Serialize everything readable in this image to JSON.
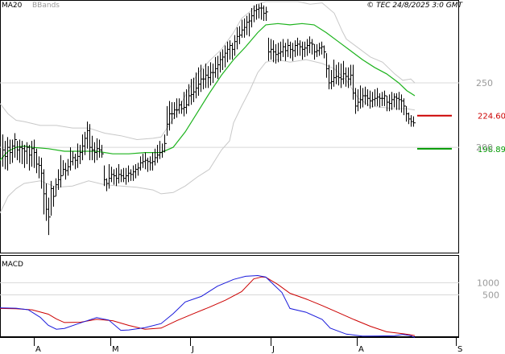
{
  "header": {
    "ma_label": "MA20",
    "bbands_label": "BBands",
    "source": "© TEC 24/8/2025 3:0 GMT"
  },
  "colors": {
    "ma": "#1db31d",
    "bbands": "#c8c8c8",
    "bars": "#000000",
    "resistance": "#cc0000",
    "support": "#009900",
    "macd": "#1a1adb",
    "signal": "#cc0000",
    "grid": "#d8d8d8",
    "axis_text": "#9a9a9a"
  },
  "chart_data": [
    {
      "type": "line",
      "panel": "price",
      "xlim": [
        0,
        570
      ],
      "ylim": [
        119,
        313
      ],
      "y_ticks": [
        {
          "value": 250,
          "label": "250"
        },
        {
          "value": 200,
          "label": "200"
        }
      ],
      "levels": [
        {
          "name": "resistance",
          "value": 224.6,
          "label": "224.60"
        },
        {
          "name": "support",
          "value": 198.89,
          "label": "198.89"
        }
      ],
      "series": [
        {
          "name": "MA20",
          "x": [
            0,
            10,
            20,
            30,
            40,
            60,
            80,
            100,
            120,
            140,
            160,
            180,
            200,
            215,
            230,
            245,
            260,
            275,
            290,
            305,
            320,
            330,
            345,
            360,
            375,
            390,
            405,
            420,
            435,
            450,
            465,
            480,
            495,
            505,
            515
          ],
          "y": [
            190,
            197,
            200,
            201,
            200,
            199,
            197,
            197,
            197,
            195,
            195,
            196,
            196,
            200,
            212,
            227,
            242,
            256,
            268,
            278,
            289,
            295,
            296,
            295,
            296,
            295,
            289,
            282,
            275,
            268,
            262,
            257,
            250,
            244,
            240
          ]
        },
        {
          "name": "BBands upper",
          "x": [
            0,
            10,
            20,
            30,
            50,
            70,
            90,
            110,
            130,
            150,
            170,
            190,
            200,
            215,
            230,
            245,
            260,
            275,
            290,
            300,
            310,
            320,
            330,
            340,
            355,
            370,
            385,
            400,
            415,
            425,
            430,
            445,
            460,
            475,
            490,
            500,
            510,
            515
          ],
          "y": [
            234,
            226,
            221,
            220,
            217,
            217,
            215,
            215,
            211,
            209,
            206,
            207,
            208,
            222,
            240,
            257,
            267,
            276,
            289,
            300,
            305,
            311,
            313,
            313,
            313,
            313,
            311,
            312,
            304,
            290,
            284,
            277,
            270,
            266,
            257,
            252,
            253,
            250
          ]
        },
        {
          "name": "BBands lower",
          "x": [
            0,
            10,
            20,
            30,
            50,
            70,
            90,
            110,
            130,
            150,
            170,
            190,
            200,
            215,
            230,
            245,
            260,
            275,
            285,
            290,
            300,
            310,
            320,
            330,
            345,
            360,
            380,
            400,
            415,
            430,
            445,
            460,
            475,
            490,
            505,
            515
          ],
          "y": [
            149,
            162,
            168,
            172,
            174,
            169,
            170,
            174,
            171,
            170,
            169,
            167,
            164,
            165,
            170,
            177,
            183,
            198,
            205,
            219,
            232,
            244,
            258,
            266,
            268,
            266,
            268,
            265,
            261,
            252,
            238,
            232,
            231,
            230,
            230,
            229
          ]
        }
      ]
    },
    {
      "type": "line",
      "panel": "macd",
      "xlim": [
        0,
        570
      ],
      "ylim": [
        -1200,
        2100
      ],
      "y_ticks": [
        {
          "value": 1000,
          "label": "1000"
        },
        {
          "value": 500,
          "label": "500"
        }
      ],
      "series": [
        {
          "name": "MACD",
          "x": [
            0,
            20,
            35,
            50,
            60,
            70,
            80,
            100,
            120,
            135,
            150,
            160,
            180,
            200,
            215,
            230,
            250,
            270,
            290,
            305,
            320,
            330,
            340,
            350,
            360,
            380,
            400,
            410,
            430,
            450,
            470,
            490,
            500,
            510,
            515
          ],
          "y": [
            -32,
            -49,
            -111,
            -420,
            -747,
            -908,
            -876,
            -648,
            -435,
            -532,
            -956,
            -940,
            -843,
            -680,
            -272,
            210,
            436,
            856,
            1132,
            1262,
            1292,
            1228,
            912,
            600,
            -58,
            -214,
            -506,
            -864,
            -1111,
            -1190,
            -1187,
            -1174,
            -1124,
            -1174,
            -1253
          ]
        },
        {
          "name": "Signal",
          "x": [
            0,
            20,
            40,
            60,
            70,
            80,
            100,
            120,
            140,
            160,
            180,
            200,
            220,
            240,
            260,
            280,
            300,
            315,
            325,
            330,
            345,
            360,
            380,
            400,
            420,
            440,
            460,
            480,
            500,
            510,
            515
          ],
          "y": [
            -58,
            -68,
            -114,
            -292,
            -487,
            -637,
            -624,
            -505,
            -559,
            -756,
            -908,
            -864,
            -551,
            -272,
            -7,
            282,
            631,
            1152,
            1234,
            1221,
            924,
            566,
            332,
            59,
            -231,
            -521,
            -791,
            -1014,
            -1092,
            -1140,
            -1169
          ]
        }
      ]
    }
  ],
  "x_axis": {
    "labels": [
      {
        "x": 42,
        "label": "A"
      },
      {
        "x": 137,
        "label": "M"
      },
      {
        "x": 236,
        "label": "J"
      },
      {
        "x": 336,
        "label": "J"
      },
      {
        "x": 443,
        "label": "A"
      },
      {
        "x": 566,
        "label": "S"
      }
    ]
  },
  "ohlc_bars": [
    [
      3,
      210,
      185,
      198
    ],
    [
      6,
      205,
      183,
      193
    ],
    [
      9,
      208,
      182,
      200
    ],
    [
      12,
      206,
      187,
      196
    ],
    [
      15,
      206,
      188,
      201
    ],
    [
      18,
      211,
      192,
      206
    ],
    [
      21,
      205,
      190,
      198
    ],
    [
      24,
      206,
      188,
      200
    ],
    [
      27,
      205,
      187,
      199
    ],
    [
      30,
      202,
      184,
      197
    ],
    [
      33,
      204,
      187,
      200
    ],
    [
      36,
      202,
      182,
      194
    ],
    [
      39,
      205,
      185,
      199
    ],
    [
      42,
      206,
      184,
      196
    ],
    [
      45,
      199,
      180,
      187
    ],
    [
      48,
      193,
      176,
      186
    ],
    [
      51,
      192,
      168,
      180
    ],
    [
      54,
      183,
      148,
      164
    ],
    [
      57,
      172,
      143,
      152
    ],
    [
      60,
      161,
      132,
      146
    ],
    [
      63,
      174,
      147,
      168
    ],
    [
      66,
      170,
      154,
      162
    ],
    [
      69,
      176,
      162,
      171
    ],
    [
      72,
      183,
      167,
      175
    ],
    [
      75,
      194,
      169,
      178
    ],
    [
      78,
      190,
      178,
      183
    ],
    [
      81,
      188,
      175,
      182
    ],
    [
      84,
      191,
      178,
      185
    ],
    [
      87,
      200,
      182,
      189
    ],
    [
      90,
      197,
      186,
      192
    ],
    [
      93,
      195,
      183,
      190
    ],
    [
      96,
      203,
      184,
      193
    ],
    [
      99,
      202,
      187,
      196
    ],
    [
      102,
      210,
      190,
      201
    ],
    [
      105,
      212,
      194,
      207
    ],
    [
      108,
      220,
      199,
      213
    ],
    [
      111,
      218,
      190,
      200
    ],
    [
      114,
      209,
      190,
      198
    ],
    [
      117,
      204,
      188,
      196
    ],
    [
      120,
      207,
      190,
      199
    ],
    [
      123,
      206,
      192,
      198
    ],
    [
      126,
      202,
      192,
      195
    ],
    [
      129,
      186,
      170,
      175
    ],
    [
      132,
      176,
      166,
      172
    ],
    [
      135,
      187,
      168,
      176
    ],
    [
      138,
      185,
      173,
      179
    ],
    [
      141,
      183,
      171,
      178
    ],
    [
      144,
      184,
      170,
      176
    ],
    [
      147,
      187,
      172,
      179
    ],
    [
      150,
      183,
      173,
      178
    ],
    [
      153,
      184,
      173,
      176
    ],
    [
      156,
      184,
      171,
      178
    ],
    [
      159,
      186,
      173,
      180
    ],
    [
      162,
      183,
      174,
      179
    ],
    [
      165,
      186,
      174,
      181
    ],
    [
      168,
      187,
      176,
      183
    ],
    [
      171,
      188,
      178,
      184
    ],
    [
      174,
      193,
      182,
      188
    ],
    [
      177,
      195,
      184,
      189
    ],
    [
      180,
      196,
      183,
      190
    ],
    [
      183,
      192,
      181,
      189
    ],
    [
      186,
      193,
      182,
      188
    ],
    [
      189,
      196,
      182,
      189
    ],
    [
      192,
      199,
      186,
      192
    ],
    [
      195,
      202,
      188,
      194
    ],
    [
      198,
      205,
      191,
      196
    ],
    [
      201,
      203,
      192,
      197
    ],
    [
      204,
      210,
      196,
      203
    ],
    [
      207,
      232,
      209,
      218
    ],
    [
      210,
      236,
      213,
      226
    ],
    [
      213,
      235,
      218,
      226
    ],
    [
      216,
      235,
      222,
      229
    ],
    [
      219,
      238,
      223,
      229
    ],
    [
      222,
      238,
      226,
      233
    ],
    [
      225,
      236,
      226,
      230
    ],
    [
      228,
      243,
      224,
      231
    ],
    [
      231,
      245,
      226,
      233
    ],
    [
      234,
      249,
      232,
      240
    ],
    [
      237,
      253,
      233,
      241
    ],
    [
      240,
      254,
      235,
      243
    ],
    [
      243,
      258,
      238,
      246
    ],
    [
      246,
      262,
      240,
      249
    ],
    [
      249,
      264,
      243,
      253
    ],
    [
      252,
      261,
      245,
      253
    ],
    [
      255,
      265,
      246,
      256
    ],
    [
      258,
      263,
      246,
      254
    ],
    [
      261,
      266,
      248,
      258
    ],
    [
      264,
      265,
      250,
      258
    ],
    [
      267,
      270,
      254,
      261
    ],
    [
      270,
      271,
      253,
      264
    ],
    [
      273,
      274,
      258,
      268
    ],
    [
      276,
      276,
      260,
      270
    ],
    [
      279,
      279,
      262,
      273
    ],
    [
      282,
      282,
      266,
      276
    ],
    [
      285,
      283,
      268,
      279
    ],
    [
      288,
      281,
      268,
      276
    ],
    [
      291,
      287,
      271,
      282
    ],
    [
      294,
      293,
      276,
      286
    ],
    [
      297,
      294,
      280,
      287
    ],
    [
      300,
      299,
      285,
      291
    ],
    [
      303,
      300,
      285,
      293
    ],
    [
      306,
      302,
      287,
      297
    ],
    [
      309,
      304,
      286,
      298
    ],
    [
      312,
      308,
      293,
      302
    ],
    [
      315,
      310,
      297,
      306
    ],
    [
      318,
      311,
      299,
      307
    ],
    [
      321,
      311,
      300,
      308
    ],
    [
      324,
      312,
      299,
      308
    ],
    [
      327,
      310,
      298,
      304
    ],
    [
      330,
      309,
      298,
      305
    ],
    [
      333,
      285,
      267,
      274
    ],
    [
      336,
      284,
      268,
      276
    ],
    [
      339,
      283,
      266,
      274
    ],
    [
      342,
      280,
      265,
      272
    ],
    [
      345,
      281,
      266,
      273
    ],
    [
      348,
      282,
      267,
      274
    ],
    [
      351,
      284,
      270,
      278
    ],
    [
      354,
      281,
      267,
      275
    ],
    [
      357,
      284,
      270,
      279
    ],
    [
      360,
      282,
      269,
      276
    ],
    [
      363,
      281,
      267,
      275
    ],
    [
      366,
      283,
      270,
      279
    ],
    [
      369,
      285,
      271,
      280
    ],
    [
      372,
      283,
      271,
      278
    ],
    [
      375,
      282,
      268,
      276
    ],
    [
      378,
      282,
      270,
      277
    ],
    [
      381,
      284,
      271,
      279
    ],
    [
      384,
      286,
      273,
      281
    ],
    [
      387,
      284,
      272,
      280
    ],
    [
      390,
      280,
      268,
      274
    ],
    [
      393,
      280,
      270,
      275
    ],
    [
      396,
      281,
      271,
      277
    ],
    [
      399,
      282,
      272,
      278
    ],
    [
      402,
      279,
      269,
      274
    ],
    [
      405,
      273,
      254,
      261
    ],
    [
      408,
      264,
      245,
      250
    ],
    [
      411,
      260,
      245,
      251
    ],
    [
      414,
      268,
      247,
      254
    ],
    [
      417,
      264,
      249,
      255
    ],
    [
      420,
      266,
      248,
      254
    ],
    [
      423,
      265,
      246,
      253
    ],
    [
      426,
      267,
      249,
      257
    ],
    [
      429,
      262,
      247,
      255
    ],
    [
      432,
      262,
      246,
      253
    ],
    [
      435,
      264,
      248,
      256
    ],
    [
      438,
      264,
      237,
      242
    ],
    [
      441,
      246,
      226,
      232
    ],
    [
      444,
      245,
      228,
      235
    ],
    [
      447,
      248,
      230,
      237
    ],
    [
      450,
      246,
      231,
      240
    ],
    [
      453,
      247,
      233,
      240
    ],
    [
      456,
      245,
      232,
      238
    ],
    [
      459,
      244,
      230,
      236
    ],
    [
      462,
      243,
      231,
      237
    ],
    [
      465,
      245,
      232,
      238
    ],
    [
      468,
      246,
      232,
      239
    ],
    [
      471,
      242,
      231,
      238
    ],
    [
      474,
      243,
      232,
      238
    ],
    [
      477,
      244,
      232,
      240
    ],
    [
      480,
      240,
      228,
      235
    ],
    [
      483,
      241,
      228,
      234
    ],
    [
      486,
      243,
      229,
      237
    ],
    [
      489,
      242,
      231,
      239
    ],
    [
      492,
      242,
      229,
      238
    ],
    [
      495,
      243,
      229,
      237
    ],
    [
      498,
      241,
      227,
      236
    ],
    [
      501,
      238,
      225,
      232
    ],
    [
      504,
      232,
      220,
      226
    ],
    [
      507,
      227,
      218,
      222
    ],
    [
      510,
      225,
      216,
      220
    ],
    [
      513,
      224,
      216,
      219
    ]
  ]
}
